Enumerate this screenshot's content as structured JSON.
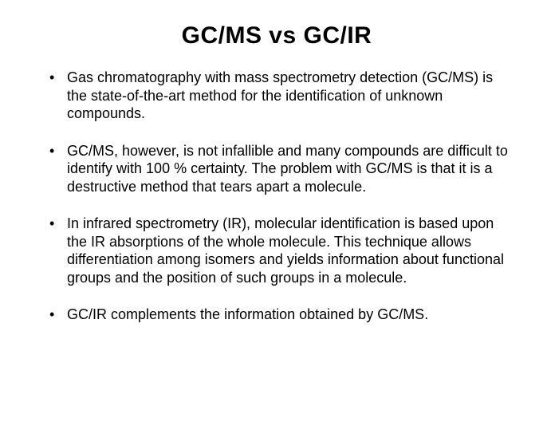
{
  "slide": {
    "title": "GC/MS vs GC/IR",
    "title_fontsize": 30,
    "title_weight": 700,
    "title_color": "#000000",
    "background_color": "#ffffff",
    "body_fontsize": 18,
    "body_color": "#000000",
    "bullet_char": "•",
    "bullets": [
      "Gas chromatography with mass spectrometry detection (GC/MS) is the state-of-the-art method for the identification of unknown compounds.",
      "GC/MS, however, is not infallible and many compounds are difficult to identify with 100 % certainty. The problem with GC/MS is that it is a destructive method that tears apart a molecule.",
      "In infrared spectrometry (IR), molecular identification is based upon the IR absorptions of the whole molecule. This technique allows differentiation among isomers and yields information about functional groups and the position of such groups in a molecule.",
      "GC/IR complements the information obtained by GC/MS."
    ]
  }
}
